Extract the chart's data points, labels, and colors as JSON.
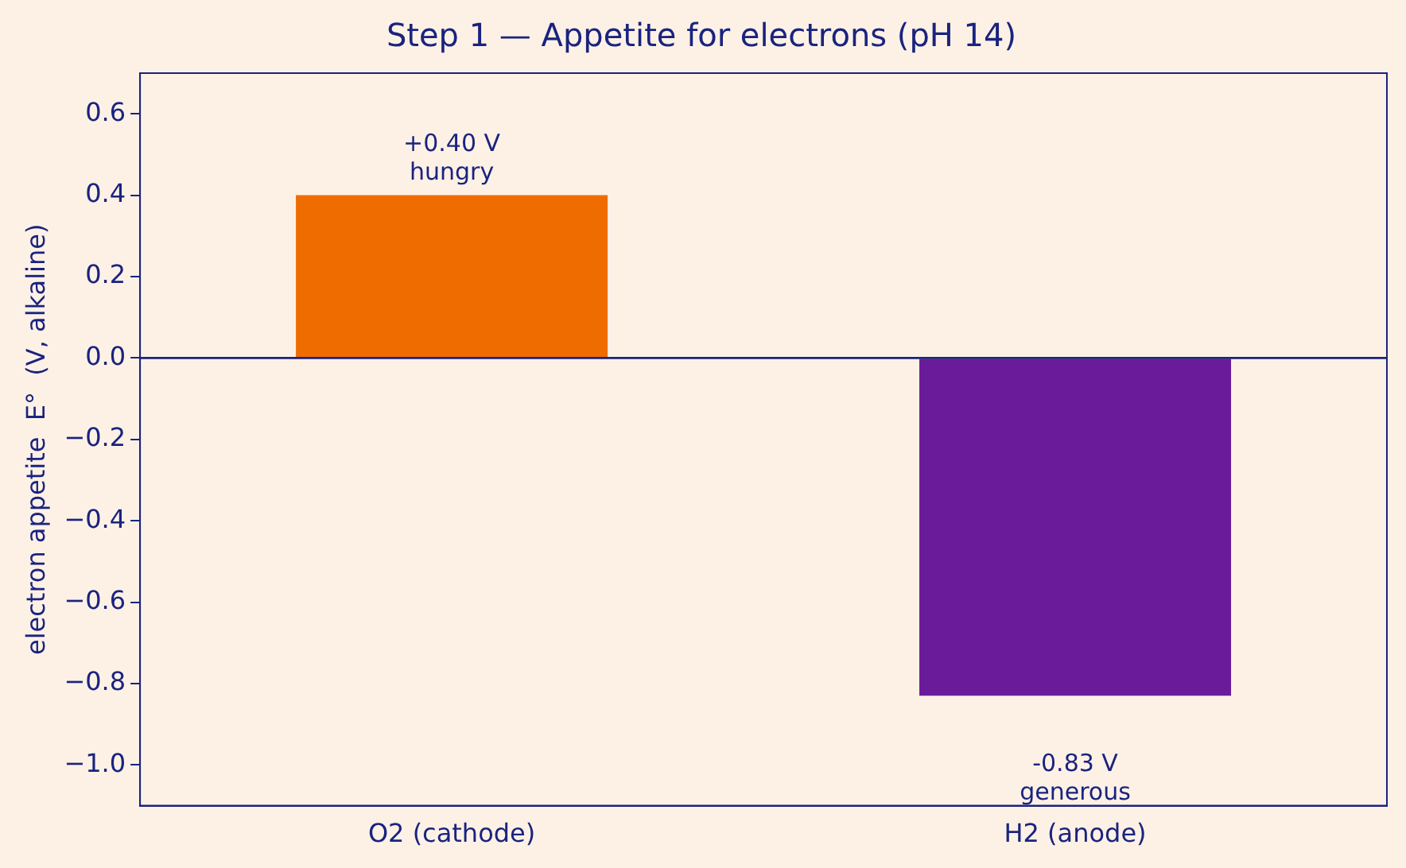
{
  "chart_data": {
    "type": "bar",
    "title": "Step 1 — Appetite for electrons (pH 14)",
    "ylabel": "electron appetite  E°  (V, alkaline)",
    "categories": [
      "O2 (cathode)",
      "H2 (anode)"
    ],
    "values": [
      0.4,
      -0.83
    ],
    "colors": [
      "#ef6c00",
      "#6a1b9a"
    ],
    "value_labels": [
      "+0.40 V\nhungry",
      "-0.83 V\ngenerous"
    ],
    "ylim": [
      -1.1,
      0.7
    ],
    "yticks": [
      {
        "value": -1.0,
        "label": "−1.0"
      },
      {
        "value": -0.8,
        "label": "−0.8"
      },
      {
        "value": -0.6,
        "label": "−0.6"
      },
      {
        "value": -0.4,
        "label": "−0.4"
      },
      {
        "value": -0.2,
        "label": "−0.2"
      },
      {
        "value": 0,
        "label": "0.0"
      },
      {
        "value": 0.2,
        "label": "0.2"
      },
      {
        "value": 0.4,
        "label": "0.4"
      },
      {
        "value": 0.6,
        "label": "0.6"
      }
    ],
    "ref_lines": [
      {
        "axis": "y",
        "value": 0,
        "label": null,
        "color": "#1a237e"
      }
    ],
    "grid": false,
    "legend": false
  }
}
